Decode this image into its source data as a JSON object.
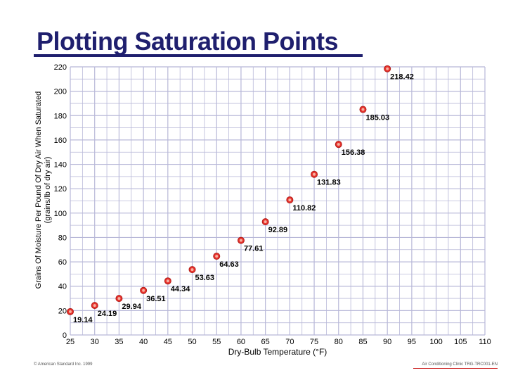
{
  "chart_data": {
    "type": "scatter",
    "title": "Plotting Saturation Points",
    "xlabel": "Dry-Bulb Temperature (°F)",
    "ylabel": "Grains Of Moisture Per Pound Of Dry Air When Saturated (grains/lb of dry air)",
    "xlim": [
      25,
      110
    ],
    "ylim": [
      0,
      220
    ],
    "x_ticks": [
      25,
      30,
      35,
      40,
      45,
      50,
      55,
      60,
      65,
      70,
      75,
      80,
      85,
      90,
      95,
      100,
      105,
      110
    ],
    "y_ticks": [
      0,
      20,
      40,
      60,
      80,
      100,
      120,
      140,
      160,
      180,
      200,
      220
    ],
    "grid": true,
    "legend": "none",
    "marker_color": "#e8322c",
    "grid_color": "#b8b8d8",
    "points": [
      {
        "x": 25,
        "y": 19.14,
        "label": "19.14"
      },
      {
        "x": 30,
        "y": 24.19,
        "label": "24.19"
      },
      {
        "x": 35,
        "y": 29.94,
        "label": "29.94"
      },
      {
        "x": 40,
        "y": 36.51,
        "label": "36.51"
      },
      {
        "x": 45,
        "y": 44.34,
        "label": "44.34"
      },
      {
        "x": 50,
        "y": 53.63,
        "label": "53.63"
      },
      {
        "x": 55,
        "y": 64.63,
        "label": "64.63"
      },
      {
        "x": 60,
        "y": 77.61,
        "label": "77.61"
      },
      {
        "x": 65,
        "y": 92.89,
        "label": "92.89"
      },
      {
        "x": 70,
        "y": 110.82,
        "label": "110.82"
      },
      {
        "x": 75,
        "y": 131.83,
        "label": "131.83"
      },
      {
        "x": 80,
        "y": 156.38,
        "label": "156.38"
      },
      {
        "x": 85,
        "y": 185.03,
        "label": "185.03"
      },
      {
        "x": 90,
        "y": 218.42,
        "label": "218.42"
      }
    ]
  },
  "footer": {
    "left": "© American Standard Inc. 1999",
    "right": "Air Conditioning Clinic TRG-TRC001-EN"
  }
}
